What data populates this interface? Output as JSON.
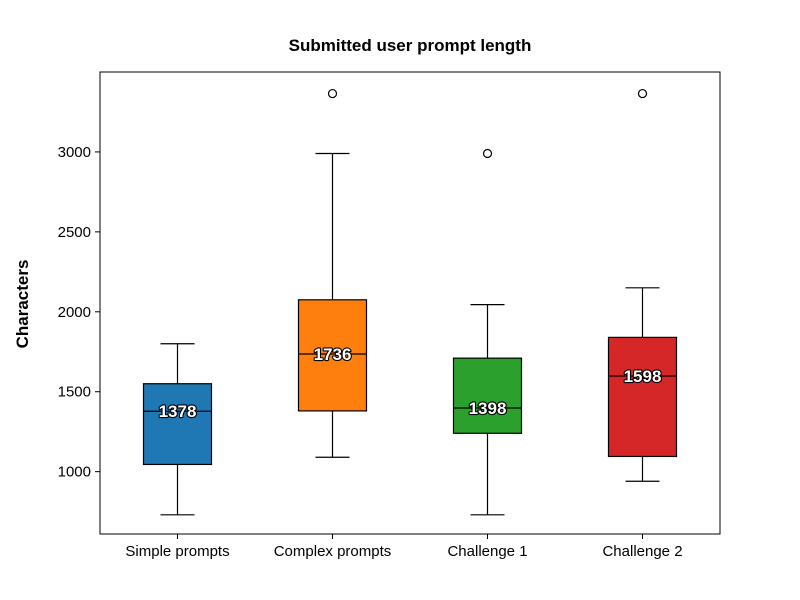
{
  "chart_data": {
    "type": "box",
    "title": "Submitted user prompt length",
    "xlabel": "",
    "ylabel": "Characters",
    "ylim": [
      610,
      3500
    ],
    "yticks": [
      1000,
      1500,
      2000,
      2500,
      3000
    ],
    "grid": false,
    "categories": [
      "Simple prompts",
      "Complex prompts",
      "Challenge 1",
      "Challenge 2"
    ],
    "boxes": [
      {
        "category": "Simple prompts",
        "color": "#1f77b4",
        "whisker_low": 730,
        "q1": 1045,
        "median": 1378,
        "q3": 1550,
        "whisker_high": 1800,
        "outliers": [],
        "median_label": "1378"
      },
      {
        "category": "Complex prompts",
        "color": "#ff7f0e",
        "whisker_low": 1090,
        "q1": 1380,
        "median": 1736,
        "q3": 2075,
        "whisker_high": 2990,
        "outliers": [
          3365
        ],
        "median_label": "1736"
      },
      {
        "category": "Challenge 1",
        "color": "#2ca02c",
        "whisker_low": 730,
        "q1": 1240,
        "median": 1398,
        "q3": 1710,
        "whisker_high": 2045,
        "outliers": [
          2990
        ],
        "median_label": "1398"
      },
      {
        "category": "Challenge 2",
        "color": "#d62728",
        "whisker_low": 940,
        "q1": 1095,
        "median": 1598,
        "q3": 1840,
        "whisker_high": 2150,
        "outliers": [
          3365
        ],
        "median_label": "1598"
      }
    ]
  }
}
